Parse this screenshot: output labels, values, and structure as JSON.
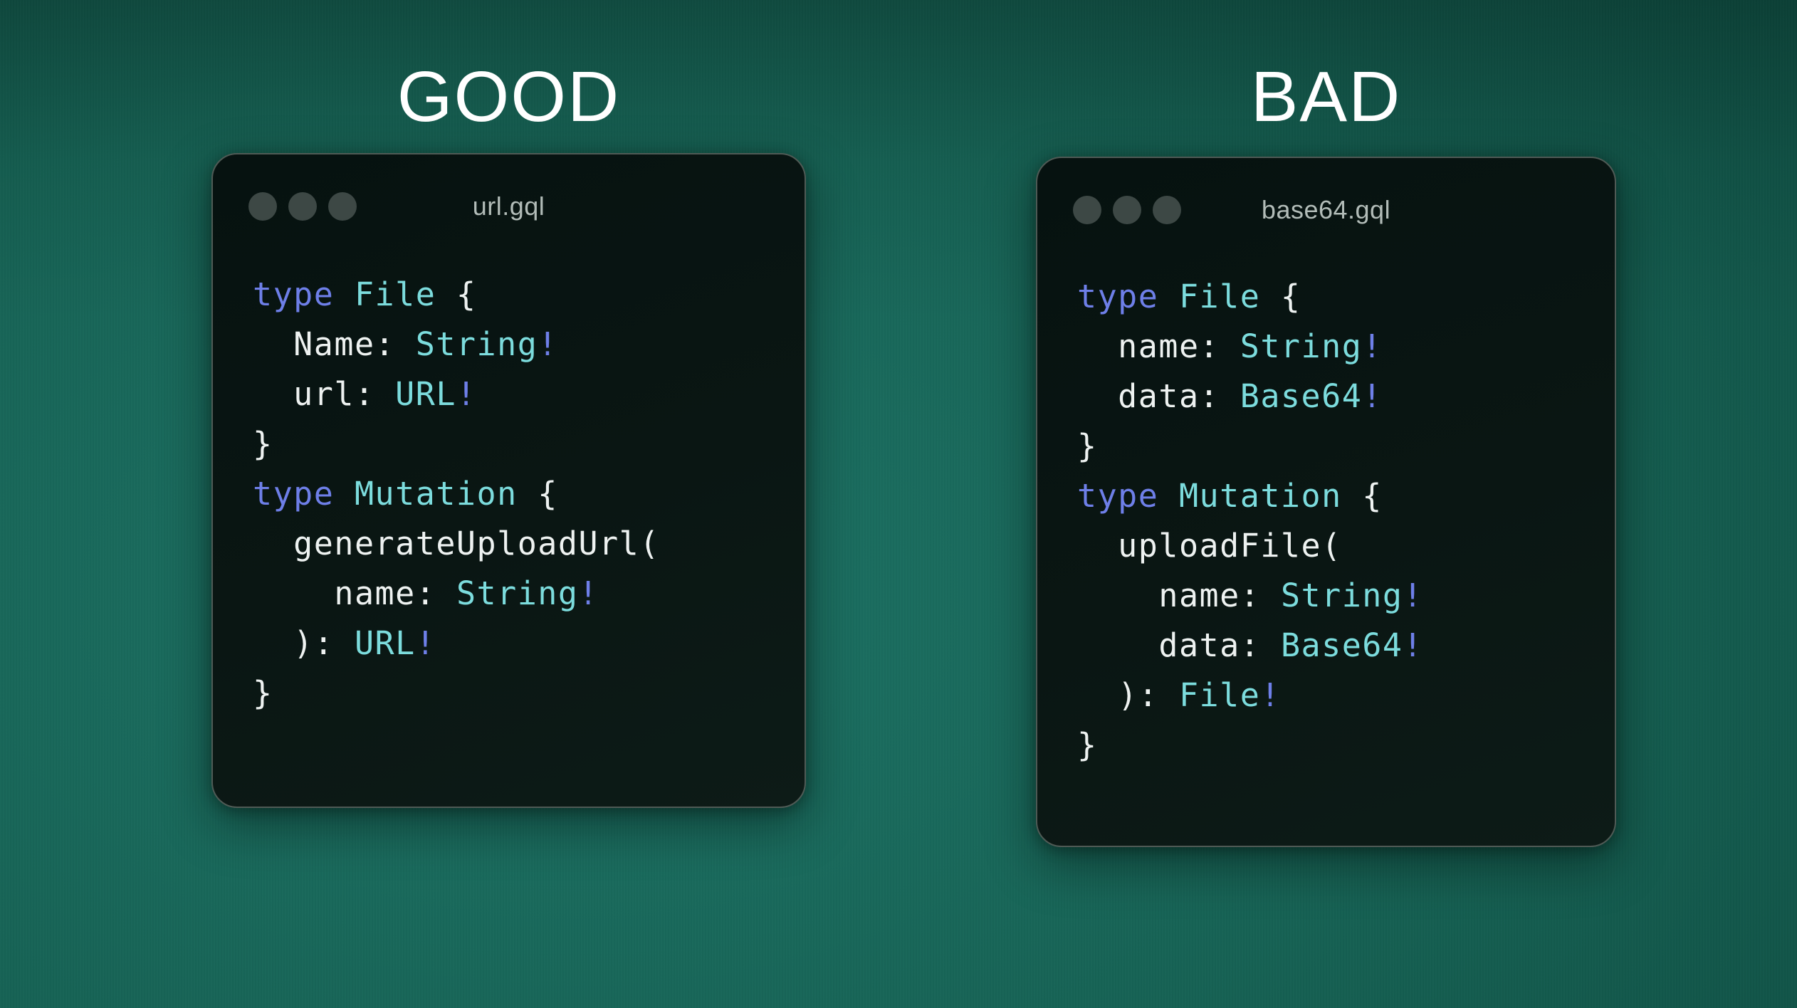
{
  "colors": {
    "heading": "#ffffff",
    "keyword": "#6e7fe8",
    "typename": "#7cdcdd",
    "plain": "#eef2f1",
    "bang": "#6e7fe8",
    "winBg": "#0a1613",
    "winBorder": "#4f5a55",
    "winDot": "#3d4845",
    "filename": "#b2bcb8",
    "bgLight": "#1c7264",
    "bgMid": "#166254",
    "bgDark": "#093f34"
  },
  "panels": [
    {
      "heading": "GOOD",
      "window": {
        "filename": "url.gql",
        "controls_count": 3,
        "code": [
          [
            {
              "c": "kw",
              "t": "type"
            },
            {
              "c": "plain",
              "t": " "
            },
            {
              "c": "type",
              "t": "File"
            },
            {
              "c": "plain",
              "t": " {"
            }
          ],
          [
            {
              "c": "plain",
              "t": "  Name: "
            },
            {
              "c": "type",
              "t": "String"
            },
            {
              "c": "bang",
              "t": "!"
            }
          ],
          [
            {
              "c": "plain",
              "t": "  url: "
            },
            {
              "c": "type",
              "t": "URL"
            },
            {
              "c": "bang",
              "t": "!"
            }
          ],
          [
            {
              "c": "plain",
              "t": "}"
            }
          ],
          [
            {
              "c": "kw",
              "t": "type"
            },
            {
              "c": "plain",
              "t": " "
            },
            {
              "c": "type",
              "t": "Mutation"
            },
            {
              "c": "plain",
              "t": " {"
            }
          ],
          [
            {
              "c": "plain",
              "t": "  generateUploadUrl("
            }
          ],
          [
            {
              "c": "plain",
              "t": "    name: "
            },
            {
              "c": "type",
              "t": "String"
            },
            {
              "c": "bang",
              "t": "!"
            }
          ],
          [
            {
              "c": "plain",
              "t": "  ): "
            },
            {
              "c": "type",
              "t": "URL"
            },
            {
              "c": "bang",
              "t": "!"
            }
          ],
          [
            {
              "c": "plain",
              "t": "}"
            }
          ]
        ]
      }
    },
    {
      "heading": "BAD",
      "window": {
        "filename": "base64.gql",
        "controls_count": 3,
        "code": [
          [
            {
              "c": "kw",
              "t": "type"
            },
            {
              "c": "plain",
              "t": " "
            },
            {
              "c": "type",
              "t": "File"
            },
            {
              "c": "plain",
              "t": " {"
            }
          ],
          [
            {
              "c": "plain",
              "t": "  name: "
            },
            {
              "c": "type",
              "t": "String"
            },
            {
              "c": "bang",
              "t": "!"
            }
          ],
          [
            {
              "c": "plain",
              "t": "  data: "
            },
            {
              "c": "type",
              "t": "Base64"
            },
            {
              "c": "bang",
              "t": "!"
            }
          ],
          [
            {
              "c": "plain",
              "t": "}"
            }
          ],
          [
            {
              "c": "kw",
              "t": "type"
            },
            {
              "c": "plain",
              "t": " "
            },
            {
              "c": "type",
              "t": "Mutation"
            },
            {
              "c": "plain",
              "t": " {"
            }
          ],
          [
            {
              "c": "plain",
              "t": "  uploadFile("
            }
          ],
          [
            {
              "c": "plain",
              "t": "    name: "
            },
            {
              "c": "type",
              "t": "String"
            },
            {
              "c": "bang",
              "t": "!"
            }
          ],
          [
            {
              "c": "plain",
              "t": "    data: "
            },
            {
              "c": "type",
              "t": "Base64"
            },
            {
              "c": "bang",
              "t": "!"
            }
          ],
          [
            {
              "c": "plain",
              "t": "  ): "
            },
            {
              "c": "type",
              "t": "File"
            },
            {
              "c": "bang",
              "t": "!"
            }
          ],
          [
            {
              "c": "plain",
              "t": "}"
            }
          ]
        ]
      }
    }
  ]
}
